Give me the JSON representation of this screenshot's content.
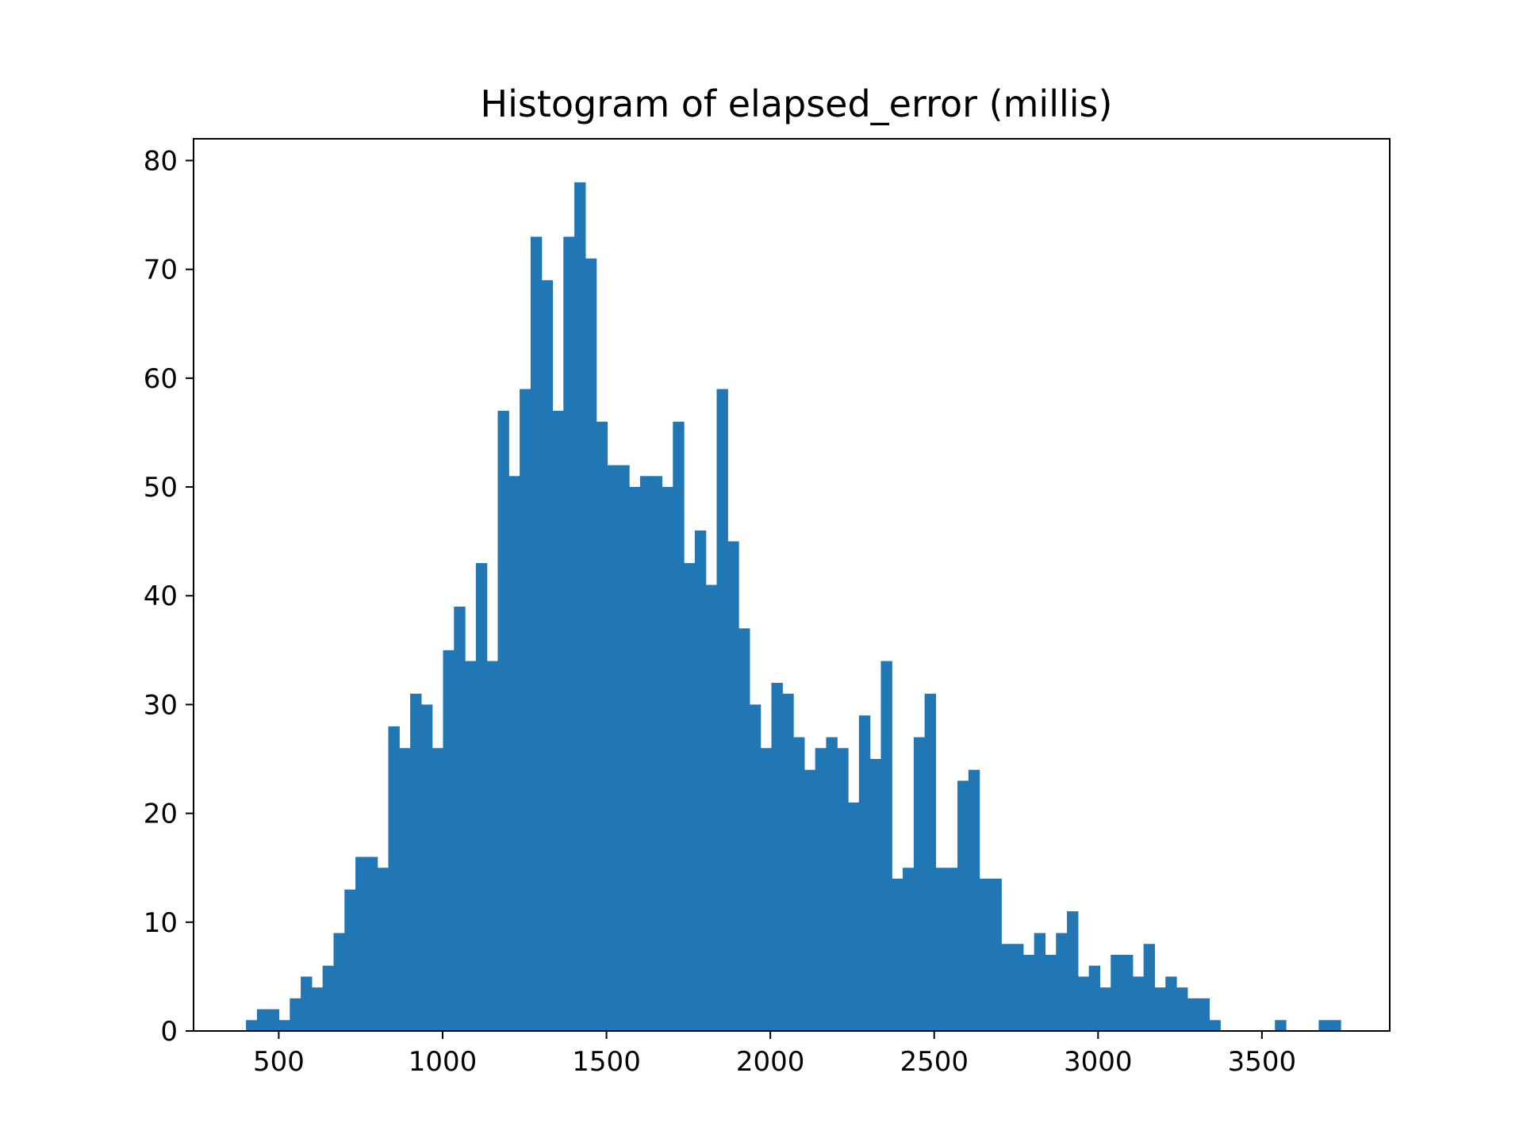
{
  "chart_data": {
    "type": "bar",
    "title": "Histogram of elapsed_error (millis)",
    "xlabel": "",
    "ylabel": "",
    "bin_start": 400,
    "bin_width": 33.4,
    "values": [
      1,
      2,
      2,
      1,
      3,
      5,
      4,
      6,
      9,
      13,
      16,
      16,
      15,
      28,
      26,
      31,
      30,
      26,
      35,
      39,
      34,
      43,
      34,
      57,
      51,
      59,
      73,
      69,
      57,
      73,
      78,
      71,
      56,
      52,
      52,
      50,
      51,
      51,
      50,
      56,
      43,
      46,
      41,
      59,
      45,
      37,
      30,
      26,
      32,
      31,
      27,
      24,
      26,
      27,
      26,
      21,
      29,
      25,
      34,
      14,
      15,
      27,
      31,
      15,
      15,
      23,
      24,
      14,
      14,
      8,
      8,
      7,
      9,
      7,
      9,
      11,
      5,
      6,
      4,
      7,
      7,
      5,
      8,
      4,
      5,
      4,
      3,
      3,
      1,
      0,
      0,
      0,
      0,
      0,
      1,
      0,
      0,
      0,
      1,
      1
    ],
    "xlim": [
      240,
      3890
    ],
    "ylim": [
      0,
      82
    ],
    "x_ticks": [
      500,
      1000,
      1500,
      2000,
      2500,
      3000,
      3500
    ],
    "x_tick_labels": [
      "500",
      "1000",
      "1500",
      "2000",
      "2500",
      "3000",
      "3500"
    ],
    "y_ticks": [
      0,
      10,
      20,
      30,
      40,
      50,
      60,
      70,
      80
    ],
    "y_tick_labels": [
      "0",
      "10",
      "20",
      "30",
      "40",
      "50",
      "60",
      "70",
      "80"
    ],
    "bar_color": "#2077b4",
    "grid": false,
    "legend": "none"
  }
}
